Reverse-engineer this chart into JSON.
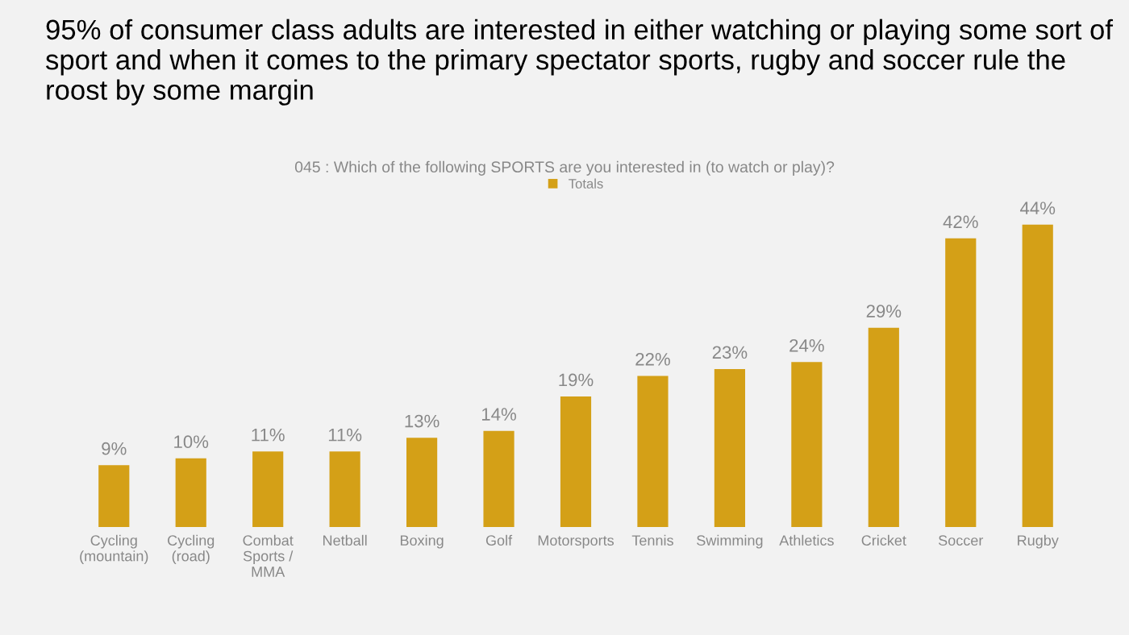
{
  "chart_data": {
    "type": "bar",
    "title": "95% of consumer class adults are interested in either watching or playing some sort of sport and when it comes to the primary spectator sports, rugby and soccer rule the roost by some margin",
    "subtitle": "045 : Which of the following SPORTS are you interested in (to watch or play)?",
    "categories": [
      "Cycling\n(mountain)",
      "Cycling\n(road)",
      "Combat\nSports /\nMMA",
      "Netball",
      "Boxing",
      "Golf",
      "Motorsports",
      "Tennis",
      "Swimming",
      "Athletics",
      "Cricket",
      "Soccer",
      "Rugby"
    ],
    "series": [
      {
        "name": "Totals",
        "color": "#d4a017",
        "values": [
          9,
          10,
          11,
          11,
          13,
          14,
          19,
          22,
          23,
          24,
          29,
          42,
          44
        ],
        "value_labels": [
          "9%",
          "10%",
          "11%",
          "11%",
          "13%",
          "14%",
          "19%",
          "22%",
          "23%",
          "24%",
          "29%",
          "42%",
          "44%"
        ]
      }
    ],
    "legend": "top",
    "grid": false,
    "tick_labels": "x"
  }
}
